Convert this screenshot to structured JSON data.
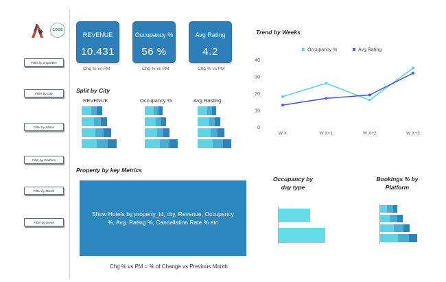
{
  "kpis": [
    {
      "title": "REVENUE",
      "value": "10.431",
      "sub": "Chg % vs PM"
    },
    {
      "title": "Occupancy %",
      "value": "56 %",
      "sub": "Chg % vs PM"
    },
    {
      "title": "Avg Rating",
      "value": "4.2",
      "sub": "Chg % vs PM"
    }
  ],
  "logo": {
    "code_text": "CODE"
  },
  "filters": [
    {
      "label": "Filter by properties"
    },
    {
      "label": "Filter by City"
    },
    {
      "label": "Filter by Status"
    },
    {
      "label": "Filter by Platform"
    },
    {
      "label": "Filter by Month"
    },
    {
      "label": "Filter by Week"
    }
  ],
  "split": {
    "title": "Split by City",
    "columns": [
      "REVENUE",
      "Occupancy %",
      "Avg Rasting"
    ]
  },
  "trend": {
    "title": "Trend by Weeks"
  },
  "property": {
    "title": "Property by key Metrics",
    "text": "Show Hotels by property_id, city, Revenue, Occupancy %, Avg. Rating %, Cancellation Rate % etc"
  },
  "occupancy_day": {
    "title_line1": "Occupancy by",
    "title_line2": "day type"
  },
  "bookings_platform": {
    "title_line1": "Bookings % by",
    "title_line2": "Platform"
  },
  "footer": {
    "note": "Chg % vs PM = % of Change vs Previous Month"
  },
  "colors": {
    "accent": "#2e7fb8",
    "occupancy": "#5fd3e4",
    "rating": "#4a5fd6"
  },
  "chart_data": {
    "type": "line",
    "title": "Trend by Weeks",
    "categories": [
      "W X",
      "W X+1",
      "W X+2",
      "W X+3"
    ],
    "series": [
      {
        "name": "Occupancy %",
        "values": [
          18,
          26,
          16,
          35
        ]
      },
      {
        "name": "Avg Rating",
        "values": [
          13,
          17,
          19,
          32
        ]
      }
    ],
    "ylim": [
      0,
      40
    ],
    "yticks": [
      0,
      10,
      20,
      30,
      40
    ],
    "legend": "top"
  }
}
